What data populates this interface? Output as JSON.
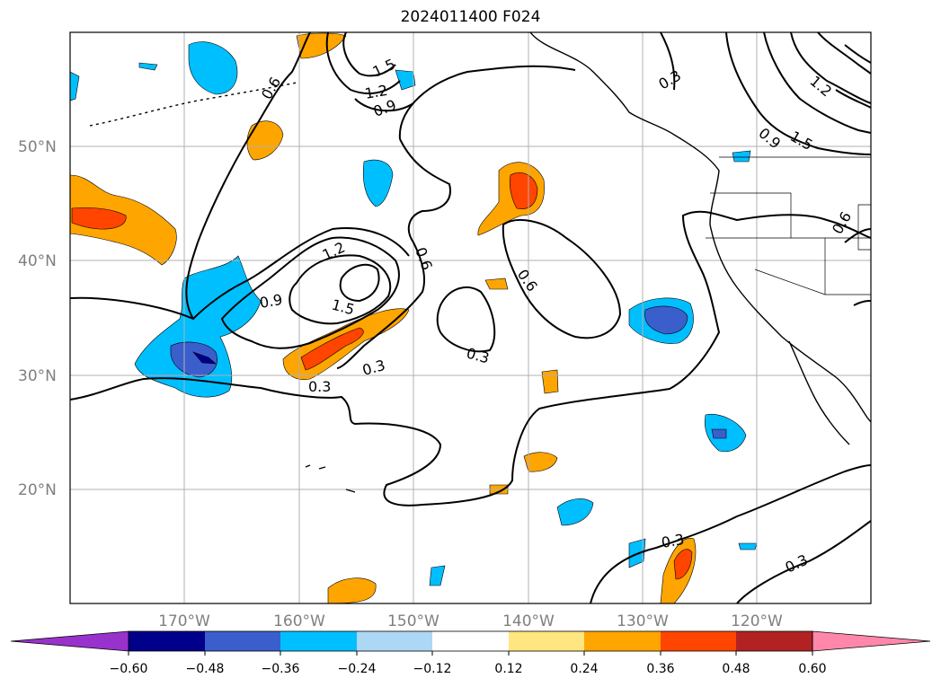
{
  "title": "2024011400 F024",
  "map": {
    "lat_labels": [
      "50°N",
      "40°N",
      "30°N",
      "20°N"
    ],
    "lon_labels": [
      "170°W",
      "160°W",
      "150°W",
      "140°W",
      "130°W",
      "120°W"
    ],
    "contour_labels": [
      "0.3",
      "0.3",
      "0.3",
      "0.3",
      "0.3",
      "0.3",
      "0.6",
      "0.6",
      "0.6",
      "0.6",
      "0.9",
      "0.9",
      "0.9",
      "1.2",
      "1.2",
      "1.2",
      "1.5",
      "1.5",
      "1.5"
    ]
  },
  "colorbar": {
    "ticks": [
      "−0.60",
      "−0.48",
      "−0.36",
      "−0.24",
      "−0.12",
      "0.12",
      "0.24",
      "0.36",
      "0.48",
      "0.60"
    ],
    "colors": [
      "#9932cc",
      "#00008b",
      "#3a5fcd",
      "#00bfff",
      "#add8f5",
      "#ffffff",
      "#ffe680",
      "#ffa500",
      "#ff4500",
      "#b22222",
      "#ff88aa"
    ]
  }
}
